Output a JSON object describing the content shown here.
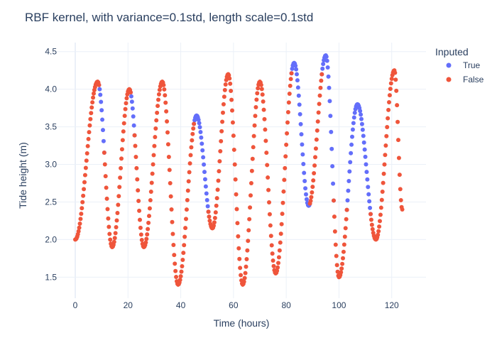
{
  "chart_data": {
    "type": "scatter",
    "title": "RBF kernel, with variance=0.1std, length scale=0.1std",
    "xlabel": "Time (hours)",
    "ylabel": "Tide height (m)",
    "xlim": [
      -7,
      133
    ],
    "ylim": [
      1.22,
      4.62
    ],
    "x_ticks": [
      0,
      20,
      40,
      60,
      80,
      100,
      120
    ],
    "y_ticks": [
      1.5,
      2,
      2.5,
      3,
      3.5,
      4,
      4.5
    ],
    "grid": true,
    "legend": {
      "title": "Inputed",
      "placement": "top-right"
    },
    "cycle_points": [
      [
        0,
        2.0
      ],
      [
        8.5,
        4.1
      ],
      [
        14,
        1.9
      ],
      [
        20.5,
        4.0
      ],
      [
        26,
        1.9
      ],
      [
        33,
        4.1
      ],
      [
        39,
        1.4
      ],
      [
        46,
        3.65
      ],
      [
        52,
        2.15
      ],
      [
        58,
        4.2
      ],
      [
        63.5,
        1.4
      ],
      [
        70,
        4.1
      ],
      [
        76,
        1.55
      ],
      [
        83,
        4.35
      ],
      [
        88.5,
        2.45
      ],
      [
        95,
        4.45
      ],
      [
        100,
        1.5
      ],
      [
        107,
        3.8
      ],
      [
        114,
        2.0
      ],
      [
        121,
        4.25
      ],
      [
        124,
        2.4
      ]
    ],
    "series": [
      {
        "name": "True",
        "color": "#636efa",
        "x_ranges": [
          [
            9,
            11
          ],
          [
            21,
            22.5
          ],
          [
            45,
            50.5
          ],
          [
            82,
            89
          ],
          [
            93.5,
            98
          ],
          [
            103,
            112
          ]
        ]
      },
      {
        "name": "False",
        "color": "#ef553b",
        "x_ranges": [
          [
            0,
            9
          ],
          [
            11,
            21
          ],
          [
            22.5,
            45
          ],
          [
            50.5,
            82
          ],
          [
            89,
            93.5
          ],
          [
            98,
            103
          ],
          [
            112,
            124
          ]
        ]
      }
    ],
    "sample_step": 0.25
  }
}
